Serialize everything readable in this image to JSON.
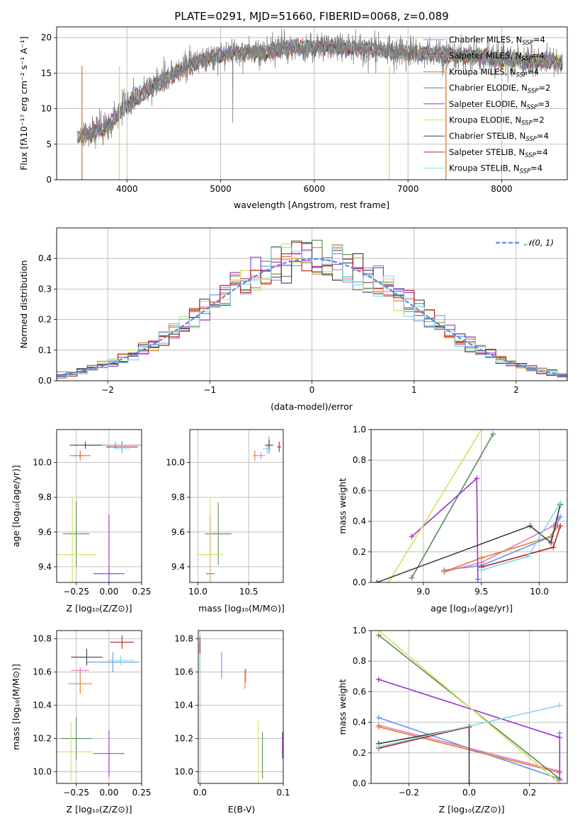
{
  "chart_data": [
    {
      "id": "spectrum",
      "type": "line",
      "title": "PLATE=0291, MJD=51660, FIBERID=0068, z=0.089",
      "xlabel": "wavelength [Angstrom, rest frame]",
      "ylabel": "Flux [fλ10⁻¹⁷ erg cm⁻² s⁻¹ A⁻¹]",
      "xlim": [
        3250,
        8700
      ],
      "ylim": [
        0,
        21.5
      ],
      "xticks": [
        "4000",
        "5000",
        "6000",
        "7000",
        "8000"
      ],
      "yticks": [
        "0",
        "5",
        "10",
        "15",
        "20"
      ],
      "continuum": {
        "x": [
          3450,
          3600,
          3800,
          4000,
          4200,
          4500,
          4800,
          5100,
          5500,
          5800,
          6200,
          6600,
          7000,
          7400,
          7800,
          8200,
          8650
        ],
        "y": [
          6.0,
          6.5,
          7.5,
          10.5,
          12.5,
          15.0,
          16.8,
          17.8,
          18.0,
          18.6,
          18.7,
          18.3,
          17.8,
          17.6,
          17.2,
          16.8,
          16.5
        ]
      },
      "series": [
        {
          "name": "Chabrier MILES, N",
          "sub": "SSP",
          "suffix": "=4",
          "color": "#6495ed"
        },
        {
          "name": "Salpeter MILES, N",
          "sub": "SSP",
          "suffix": "=4",
          "color": "#e377c2"
        },
        {
          "name": "Kroupa MILES, N",
          "sub": "SSP",
          "suffix": "=4",
          "color": "#e07b2a"
        },
        {
          "name": "Chabrier ELODIE, N",
          "sub": "SSP",
          "suffix": "=2",
          "color": "#5a8a5a"
        },
        {
          "name": "Salpeter ELODIE, N",
          "sub": "SSP",
          "suffix": "=3",
          "color": "#9932cc"
        },
        {
          "name": "Kroupa ELODIE, N",
          "sub": "SSP",
          "suffix": "=2",
          "color": "#d4e157"
        },
        {
          "name": "Chabrier STELIB, N",
          "sub": "SSP",
          "suffix": "=4",
          "color": "#404040"
        },
        {
          "name": "Salpeter STELIB, N",
          "sub": "SSP",
          "suffix": "=4",
          "color": "#b22222"
        },
        {
          "name": "Kroupa STELIB, N",
          "sub": "SSP",
          "suffix": "=4",
          "color": "#7fd7e8"
        }
      ],
      "data_color": "#808080"
    },
    {
      "id": "residuals",
      "type": "histogram",
      "xlabel": "(data-model)/error",
      "ylabel": "Normed distribution",
      "xlim": [
        -2.5,
        2.5
      ],
      "ylim": [
        0,
        0.5
      ],
      "xticks": [
        "−2",
        "−1",
        "0",
        "1",
        "2"
      ],
      "yticks": [
        "0.0",
        "0.1",
        "0.2",
        "0.3",
        "0.4"
      ],
      "legend": "𝒩(0, 1)",
      "gauss_color": "#5b8ddb",
      "grid": true
    },
    {
      "id": "age_vs_Z",
      "type": "errorbar",
      "xlabel": "Z [log₁₀(Z/Z⊙)]",
      "ylabel": "age  [log₁₀(age/yr)]",
      "xlim": [
        -0.4,
        0.25
      ],
      "ylim": [
        9.31,
        10.19
      ],
      "xticks": [
        "−0.25",
        "0.00",
        "0.25"
      ],
      "yticks": [
        "9.4",
        "9.6",
        "9.8",
        "10.0"
      ],
      "points": [
        {
          "x": 0.05,
          "y": 10.1,
          "xerr": 0.22,
          "yerr": 0.02,
          "color": "#6495ed"
        },
        {
          "x": -0.22,
          "y": 10.04,
          "xerr": 0.05,
          "yerr": 0.02,
          "color": "#e377c2"
        },
        {
          "x": -0.22,
          "y": 10.04,
          "xerr": 0.08,
          "yerr": 0.03,
          "color": "#e07b2a"
        },
        {
          "x": -0.25,
          "y": 9.59,
          "xerr": 0.1,
          "yerr": 0.19,
          "color": "#5a8a5a"
        },
        {
          "x": 0.0,
          "y": 9.36,
          "xerr": 0.12,
          "yerr": 0.34,
          "color": "#9932cc"
        },
        {
          "x": -0.28,
          "y": 9.47,
          "xerr": 0.18,
          "yerr": 0.33,
          "color": "#d4e157"
        },
        {
          "x": -0.18,
          "y": 10.1,
          "xerr": 0.12,
          "yerr": 0.02,
          "color": "#404040"
        },
        {
          "x": 0.1,
          "y": 10.09,
          "xerr": 0.12,
          "yerr": 0.03,
          "color": "#b22222"
        },
        {
          "x": 0.1,
          "y": 10.08,
          "xerr": 0.06,
          "yerr": 0.03,
          "color": "#7fd7e8"
        }
      ]
    },
    {
      "id": "age_vs_mass",
      "type": "errorbar",
      "xlabel": "mass [log₁₀(M/M⊙)]",
      "ylabel": "",
      "xlim": [
        9.92,
        10.84
      ],
      "ylim": [
        9.31,
        10.19
      ],
      "xticks": [
        "10.0",
        "10.5"
      ],
      "yticks": [
        "9.4",
        "9.6",
        "9.8",
        "10.0"
      ],
      "points": [
        {
          "x": 10.7,
          "y": 10.1,
          "xerr": 0.04,
          "yerr": 0.05,
          "color": "#6495ed"
        },
        {
          "x": 10.62,
          "y": 10.04,
          "xerr": 0.04,
          "yerr": 0.02,
          "color": "#e377c2"
        },
        {
          "x": 10.56,
          "y": 10.04,
          "xerr": 0.02,
          "yerr": 0.03,
          "color": "#e07b2a"
        },
        {
          "x": 10.2,
          "y": 9.59,
          "xerr": 0.13,
          "yerr": 0.18,
          "color": "#5a8a5a"
        },
        {
          "x": 10.12,
          "y": 9.36,
          "xerr": 0.04,
          "yerr": 0.34,
          "color": "#9932cc"
        },
        {
          "x": 10.12,
          "y": 9.47,
          "xerr": 0.13,
          "yerr": 0.33,
          "color": "#d4e157"
        },
        {
          "x": 10.7,
          "y": 10.1,
          "xerr": 0.04,
          "yerr": 0.03,
          "color": "#404040"
        },
        {
          "x": 10.8,
          "y": 10.09,
          "xerr": 0.02,
          "yerr": 0.03,
          "color": "#b22222"
        },
        {
          "x": 10.68,
          "y": 10.08,
          "xerr": 0.04,
          "yerr": 0.03,
          "color": "#7fd7e8"
        }
      ]
    },
    {
      "id": "mass_weight_vs_age",
      "type": "line",
      "xlabel": "age  [log₁₀(age/yr)]",
      "ylabel": "mass weight",
      "xlim": [
        8.55,
        10.24
      ],
      "ylim": [
        0,
        1
      ],
      "xticks": [
        "9.0",
        "9.5",
        "10.0"
      ],
      "yticks": [
        "0.0",
        "0.2",
        "0.4",
        "0.6",
        "0.8",
        "1.0"
      ],
      "grid": true,
      "lines": [
        {
          "color": "#6495ed",
          "x": [
            9.18,
            9.5,
            10.1,
            10.18
          ],
          "y": [
            0.08,
            0.11,
            0.3,
            0.43
          ]
        },
        {
          "color": "#e377c2",
          "x": [
            9.18,
            9.5,
            10.12,
            10.16
          ],
          "y": [
            0.07,
            0.13,
            0.37,
            0.42
          ]
        },
        {
          "color": "#e07b2a",
          "x": [
            9.18,
            9.5,
            10.1,
            10.16
          ],
          "y": [
            0.07,
            0.16,
            0.3,
            0.37
          ]
        },
        {
          "color": "#5a8a5a",
          "x": [
            8.9,
            9.6
          ],
          "y": [
            0.03,
            0.97
          ]
        },
        {
          "color": "#9932cc",
          "x": [
            8.9,
            9.46,
            9.47
          ],
          "y": [
            0.3,
            0.68,
            0.02
          ]
        },
        {
          "color": "#d4e157",
          "x": [
            8.7,
            9.5
          ],
          "y": [
            0.0,
            1.0
          ]
        },
        {
          "color": "#404040",
          "x": [
            8.6,
            9.92,
            10.1,
            10.18
          ],
          "y": [
            0.0,
            0.37,
            0.26,
            0.51
          ]
        },
        {
          "color": "#b22222",
          "x": [
            9.5,
            10.12,
            10.18
          ],
          "y": [
            0.1,
            0.23,
            0.37
          ]
        },
        {
          "color": "#7fd7e8",
          "x": [
            9.5,
            9.9,
            10.18
          ],
          "y": [
            0.08,
            0.17,
            0.52
          ]
        }
      ]
    },
    {
      "id": "mass_vs_Z",
      "type": "errorbar",
      "xlabel": "Z [log₁₀(Z/Z⊙)]",
      "ylabel": "mass [log₁₀(M/M⊙)]",
      "xlim": [
        -0.4,
        0.25
      ],
      "ylim": [
        9.93,
        10.85
      ],
      "xticks": [
        "−0.25",
        "0.00",
        "0.25"
      ],
      "yticks": [
        "10.0",
        "10.2",
        "10.4",
        "10.6",
        "10.8"
      ],
      "points": [
        {
          "x": 0.03,
          "y": 10.66,
          "xerr": 0.2,
          "yerr": 0.06,
          "color": "#6495ed"
        },
        {
          "x": -0.22,
          "y": 10.61,
          "xerr": 0.07,
          "yerr": 0.02,
          "color": "#e377c2"
        },
        {
          "x": -0.22,
          "y": 10.53,
          "xerr": 0.09,
          "yerr": 0.06,
          "color": "#e07b2a"
        },
        {
          "x": -0.25,
          "y": 10.2,
          "xerr": 0.12,
          "yerr": 0.13,
          "color": "#5a8a5a"
        },
        {
          "x": 0.0,
          "y": 10.11,
          "xerr": 0.12,
          "yerr": 0.14,
          "color": "#9932cc"
        },
        {
          "x": -0.29,
          "y": 10.12,
          "xerr": 0.17,
          "yerr": 0.18,
          "color": "#d4e157"
        },
        {
          "x": -0.17,
          "y": 10.69,
          "xerr": 0.12,
          "yerr": 0.05,
          "color": "#404040"
        },
        {
          "x": 0.1,
          "y": 10.78,
          "xerr": 0.09,
          "yerr": 0.04,
          "color": "#b22222"
        },
        {
          "x": 0.09,
          "y": 10.67,
          "xerr": 0.1,
          "yerr": 0.03,
          "color": "#7fd7e8"
        }
      ]
    },
    {
      "id": "mass_vs_EBV",
      "type": "errorbar",
      "xlabel": "E(B-V)",
      "ylabel": "",
      "xlim": [
        -0.002,
        0.1
      ],
      "ylim": [
        9.93,
        10.85
      ],
      "xticks": [
        "0.0",
        "0.1"
      ],
      "yticks": [
        "10.0",
        "10.2",
        "10.4",
        "10.6",
        "10.8"
      ],
      "points": [
        {
          "x": 0.026,
          "y": 10.64,
          "xerr": 0.0,
          "yerr": 0.08,
          "color": "#6495ed"
        },
        {
          "x": 0.055,
          "y": 10.58,
          "xerr": 0.0,
          "yerr": 0.04,
          "color": "#e377c2"
        },
        {
          "x": 0.054,
          "y": 10.56,
          "xerr": 0.0,
          "yerr": 0.06,
          "color": "#e07b2a"
        },
        {
          "x": 0.075,
          "y": 10.1,
          "xerr": 0.0,
          "yerr": 0.14,
          "color": "#5a8a5a"
        },
        {
          "x": 0.099,
          "y": 10.16,
          "xerr": 0.0,
          "yerr": 0.08,
          "color": "#9932cc"
        },
        {
          "x": 0.07,
          "y": 10.12,
          "xerr": 0.0,
          "yerr": 0.19,
          "color": "#d4e157"
        },
        {
          "x": 0.0,
          "y": 10.75,
          "xerr": 0.0,
          "yerr": 0.03,
          "color": "#404040"
        },
        {
          "x": 0.0,
          "y": 10.76,
          "xerr": 0.0,
          "yerr": 0.05,
          "color": "#b22222"
        },
        {
          "x": 0.0,
          "y": 10.66,
          "xerr": 0.0,
          "yerr": 0.05,
          "color": "#7fd7e8"
        }
      ]
    },
    {
      "id": "mass_weight_vs_Z",
      "type": "line",
      "xlabel": "Z [log₁₀(Z/Z⊙)]",
      "ylabel": "mass weight",
      "xlim": [
        -0.325,
        0.325
      ],
      "ylim": [
        0,
        1
      ],
      "xticks": [
        "−0.2",
        "0.0",
        "0.2"
      ],
      "yticks": [
        "0.0",
        "0.2",
        "0.4",
        "0.6",
        "0.8",
        "1.0"
      ],
      "grid": true,
      "lines": [
        {
          "color": "#6495ed",
          "x": [
            -0.3,
            0.3,
            0.3
          ],
          "y": [
            0.43,
            0.03,
            0.33
          ]
        },
        {
          "color": "#e377c2",
          "x": [
            -0.3,
            0.3
          ],
          "y": [
            0.38,
            0.08
          ]
        },
        {
          "color": "#e07b2a",
          "x": [
            -0.3,
            0.3
          ],
          "y": [
            0.37,
            0.07
          ]
        },
        {
          "color": "#5a8a5a",
          "x": [
            -0.3,
            0.3
          ],
          "y": [
            0.97,
            0.03
          ]
        },
        {
          "color": "#9932cc",
          "x": [
            -0.3,
            0.3,
            0.3
          ],
          "y": [
            0.68,
            0.3,
            0.02
          ]
        },
        {
          "color": "#d4e157",
          "x": [
            -0.3,
            0.3
          ],
          "y": [
            1.0,
            0.0
          ]
        },
        {
          "color": "#404040",
          "x": [
            -0.3,
            0.0,
            0.0
          ],
          "y": [
            0.26,
            0.37,
            0.0
          ]
        },
        {
          "color": "#b22222",
          "x": [
            -0.3,
            0.0
          ],
          "y": [
            0.23,
            0.37
          ]
        },
        {
          "color": "#7fd7e8",
          "x": [
            -0.3,
            0.3
          ],
          "y": [
            0.24,
            0.51
          ]
        }
      ]
    }
  ]
}
